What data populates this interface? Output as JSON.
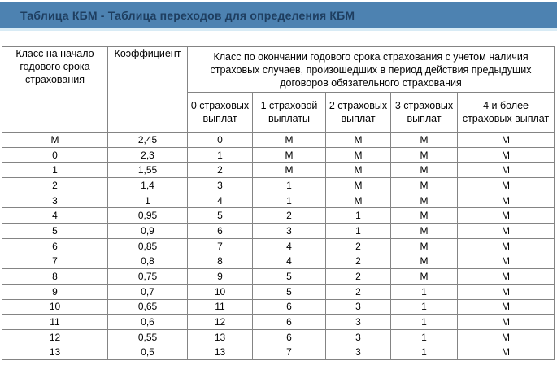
{
  "title": "Таблица КБМ - Таблица переходов для определения КБМ",
  "colors": {
    "title_bar_background": "#4d82b1",
    "title_text": "#1e3e60",
    "title_bar_underline": "#d8ebf5",
    "table_border": "#848484",
    "cell_text": "#000000"
  },
  "table": {
    "col1_header": "Класс на начало годового срока страхования",
    "col2_header": "Коэффициент",
    "group_header": "Класс по окончании годового срока страхования с учетом наличия страховых случаев, произошедших в период действия предыдущих договоров обязательного страхования",
    "sub_headers": [
      "0 страховых выплат",
      "1 страховой выплаты",
      "2 страховых выплат",
      "3 страховых выплат",
      "4 и более страховых выплат"
    ],
    "rows": [
      [
        "М",
        "2,45",
        "0",
        "М",
        "М",
        "М",
        "М"
      ],
      [
        "0",
        "2,3",
        "1",
        "М",
        "М",
        "М",
        "М"
      ],
      [
        "1",
        "1,55",
        "2",
        "М",
        "М",
        "М",
        "М"
      ],
      [
        "2",
        "1,4",
        "3",
        "1",
        "М",
        "М",
        "М"
      ],
      [
        "3",
        "1",
        "4",
        "1",
        "М",
        "М",
        "М"
      ],
      [
        "4",
        "0,95",
        "5",
        "2",
        "1",
        "М",
        "М"
      ],
      [
        "5",
        "0,9",
        "6",
        "3",
        "1",
        "М",
        "М"
      ],
      [
        "6",
        "0,85",
        "7",
        "4",
        "2",
        "М",
        "М"
      ],
      [
        "7",
        "0,8",
        "8",
        "4",
        "2",
        "М",
        "М"
      ],
      [
        "8",
        "0,75",
        "9",
        "5",
        "2",
        "М",
        "М"
      ],
      [
        "9",
        "0,7",
        "10",
        "5",
        "2",
        "1",
        "М"
      ],
      [
        "10",
        "0,65",
        "11",
        "6",
        "3",
        "1",
        "М"
      ],
      [
        "11",
        "0,6",
        "12",
        "6",
        "3",
        "1",
        "М"
      ],
      [
        "12",
        "0,55",
        "13",
        "6",
        "3",
        "1",
        "М"
      ],
      [
        "13",
        "0,5",
        "13",
        "7",
        "3",
        "1",
        "М"
      ]
    ]
  }
}
